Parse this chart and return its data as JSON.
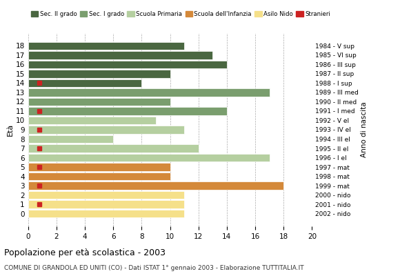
{
  "ages": [
    18,
    17,
    16,
    15,
    14,
    13,
    12,
    11,
    10,
    9,
    8,
    7,
    6,
    5,
    4,
    3,
    2,
    1,
    0
  ],
  "anno_nascita": [
    "1984 - V sup",
    "1985 - VI sup",
    "1986 - III sup",
    "1987 - II sup",
    "1988 - I sup",
    "1989 - III med",
    "1990 - II med",
    "1991 - I med",
    "1992 - V el",
    "1993 - IV el",
    "1994 - III el",
    "1995 - II el",
    "1996 - I el",
    "1997 - mat",
    "1998 - mat",
    "1999 - mat",
    "2000 - nido",
    "2001 - nido",
    "2002 - nido"
  ],
  "values": [
    11,
    13,
    14,
    10,
    8,
    17,
    10,
    14,
    9,
    11,
    6,
    12,
    17,
    10,
    10,
    18,
    11,
    11,
    11
  ],
  "stranieri": [
    0,
    0,
    0,
    0,
    1,
    0,
    0,
    1,
    0,
    1,
    0,
    1,
    0,
    1,
    0,
    1,
    0,
    1,
    0
  ],
  "stranieri_x": [
    0,
    0,
    0,
    0,
    0.8,
    0,
    0,
    0.8,
    0,
    0.8,
    0,
    0.8,
    0,
    0.8,
    0,
    0.8,
    0,
    0.8,
    0
  ],
  "colors": {
    "sec2": "#4a6741",
    "sec1": "#7a9e6e",
    "primaria": "#b5cfa0",
    "infanzia": "#d4893a",
    "nido": "#f5e08a",
    "stranieri": "#cc2222"
  },
  "bar_colors": [
    "#4a6741",
    "#4a6741",
    "#4a6741",
    "#4a6741",
    "#4a6741",
    "#7a9e6e",
    "#7a9e6e",
    "#7a9e6e",
    "#b5cfa0",
    "#b5cfa0",
    "#b5cfa0",
    "#b5cfa0",
    "#b5cfa0",
    "#d4893a",
    "#d4893a",
    "#d4893a",
    "#f5e08a",
    "#f5e08a",
    "#f5e08a"
  ],
  "title": "Popolazione per età scolastica - 2003",
  "subtitle": "COMUNE DI GRANDOLA ED UNITI (CO) - Dati ISTAT 1° gennaio 2003 - Elaborazione TUTTITALIA.IT",
  "ylabel": "Età",
  "right_label": "Anno di nascita",
  "xlim": [
    0,
    20
  ],
  "xticks": [
    0,
    2,
    4,
    6,
    8,
    10,
    12,
    14,
    16,
    18,
    20
  ],
  "legend_labels": [
    "Sec. II grado",
    "Sec. I grado",
    "Scuola Primaria",
    "Scuola dell'Infanzia",
    "Asilo Nido",
    "Stranieri"
  ],
  "legend_colors": [
    "#4a6741",
    "#7a9e6e",
    "#b5cfa0",
    "#d4893a",
    "#f5e08a",
    "#cc2222"
  ],
  "bg_color": "#ffffff",
  "bar_height": 0.85,
  "grid_color": "#aaaaaa"
}
